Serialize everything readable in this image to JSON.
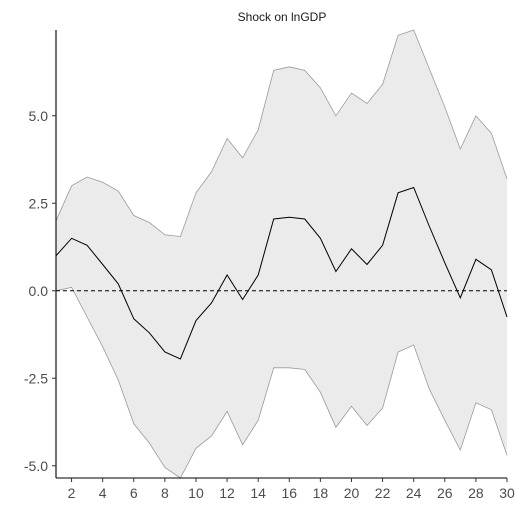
{
  "chart_data": {
    "type": "line",
    "title": "Shock on lnGDP",
    "xlabel": "",
    "ylabel": "",
    "xlim": [
      1,
      30
    ],
    "ylim": [
      -5.35,
      7.45
    ],
    "grid": false,
    "legend": "none",
    "x_ticks": [
      2,
      4,
      6,
      8,
      10,
      12,
      14,
      16,
      18,
      20,
      22,
      24,
      26,
      28,
      30
    ],
    "x_tick_labels": [
      "2",
      "4",
      "6",
      "8",
      "10",
      "12",
      "14",
      "16",
      "18",
      "20",
      "22",
      "24",
      "26",
      "28",
      "30"
    ],
    "y_ticks": [
      -5.0,
      -2.5,
      0.0,
      2.5,
      5.0
    ],
    "y_tick_labels": [
      "-5.0",
      "-2.5",
      "0.0",
      "2.5",
      "5.0"
    ],
    "reference_line": {
      "y": 0,
      "style": "dashed"
    },
    "x": [
      1,
      2,
      3,
      4,
      5,
      6,
      7,
      8,
      9,
      10,
      11,
      12,
      13,
      14,
      15,
      16,
      17,
      18,
      19,
      20,
      21,
      22,
      23,
      24,
      25,
      26,
      27,
      28,
      29,
      30
    ],
    "series": [
      {
        "role": "estimate",
        "values": [
          1.0,
          1.5,
          1.3,
          0.75,
          0.2,
          -0.8,
          -1.2,
          -1.75,
          -1.95,
          -0.85,
          -0.35,
          0.45,
          -0.25,
          0.45,
          2.05,
          2.1,
          2.05,
          1.5,
          0.55,
          1.2,
          0.75,
          1.3,
          2.8,
          2.95,
          1.85,
          0.8,
          -0.2,
          0.9,
          0.6,
          -0.75
        ]
      },
      {
        "role": "upper_bound",
        "values": [
          2.0,
          3.0,
          3.25,
          3.1,
          2.85,
          2.15,
          1.95,
          1.6,
          1.55,
          2.8,
          3.4,
          4.35,
          3.8,
          4.6,
          6.3,
          6.4,
          6.3,
          5.8,
          5.0,
          5.65,
          5.35,
          5.9,
          7.3,
          7.45,
          6.35,
          5.25,
          4.05,
          5.0,
          4.5,
          3.2
        ]
      },
      {
        "role": "lower_bound",
        "values": [
          0.0,
          0.1,
          -0.75,
          -1.6,
          -2.55,
          -3.8,
          -4.35,
          -5.05,
          -5.35,
          -4.5,
          -4.15,
          -3.45,
          -4.4,
          -3.7,
          -2.2,
          -2.2,
          -2.25,
          -2.9,
          -3.9,
          -3.3,
          -3.85,
          -3.35,
          -1.75,
          -1.55,
          -2.8,
          -3.7,
          -4.55,
          -3.2,
          -3.4,
          -4.7
        ]
      }
    ],
    "colors": {
      "band_fill": "#ebebeb",
      "band_edge": "#9a9a9a",
      "line": "#000000",
      "reference": "#000000",
      "axis": "#000000"
    }
  }
}
